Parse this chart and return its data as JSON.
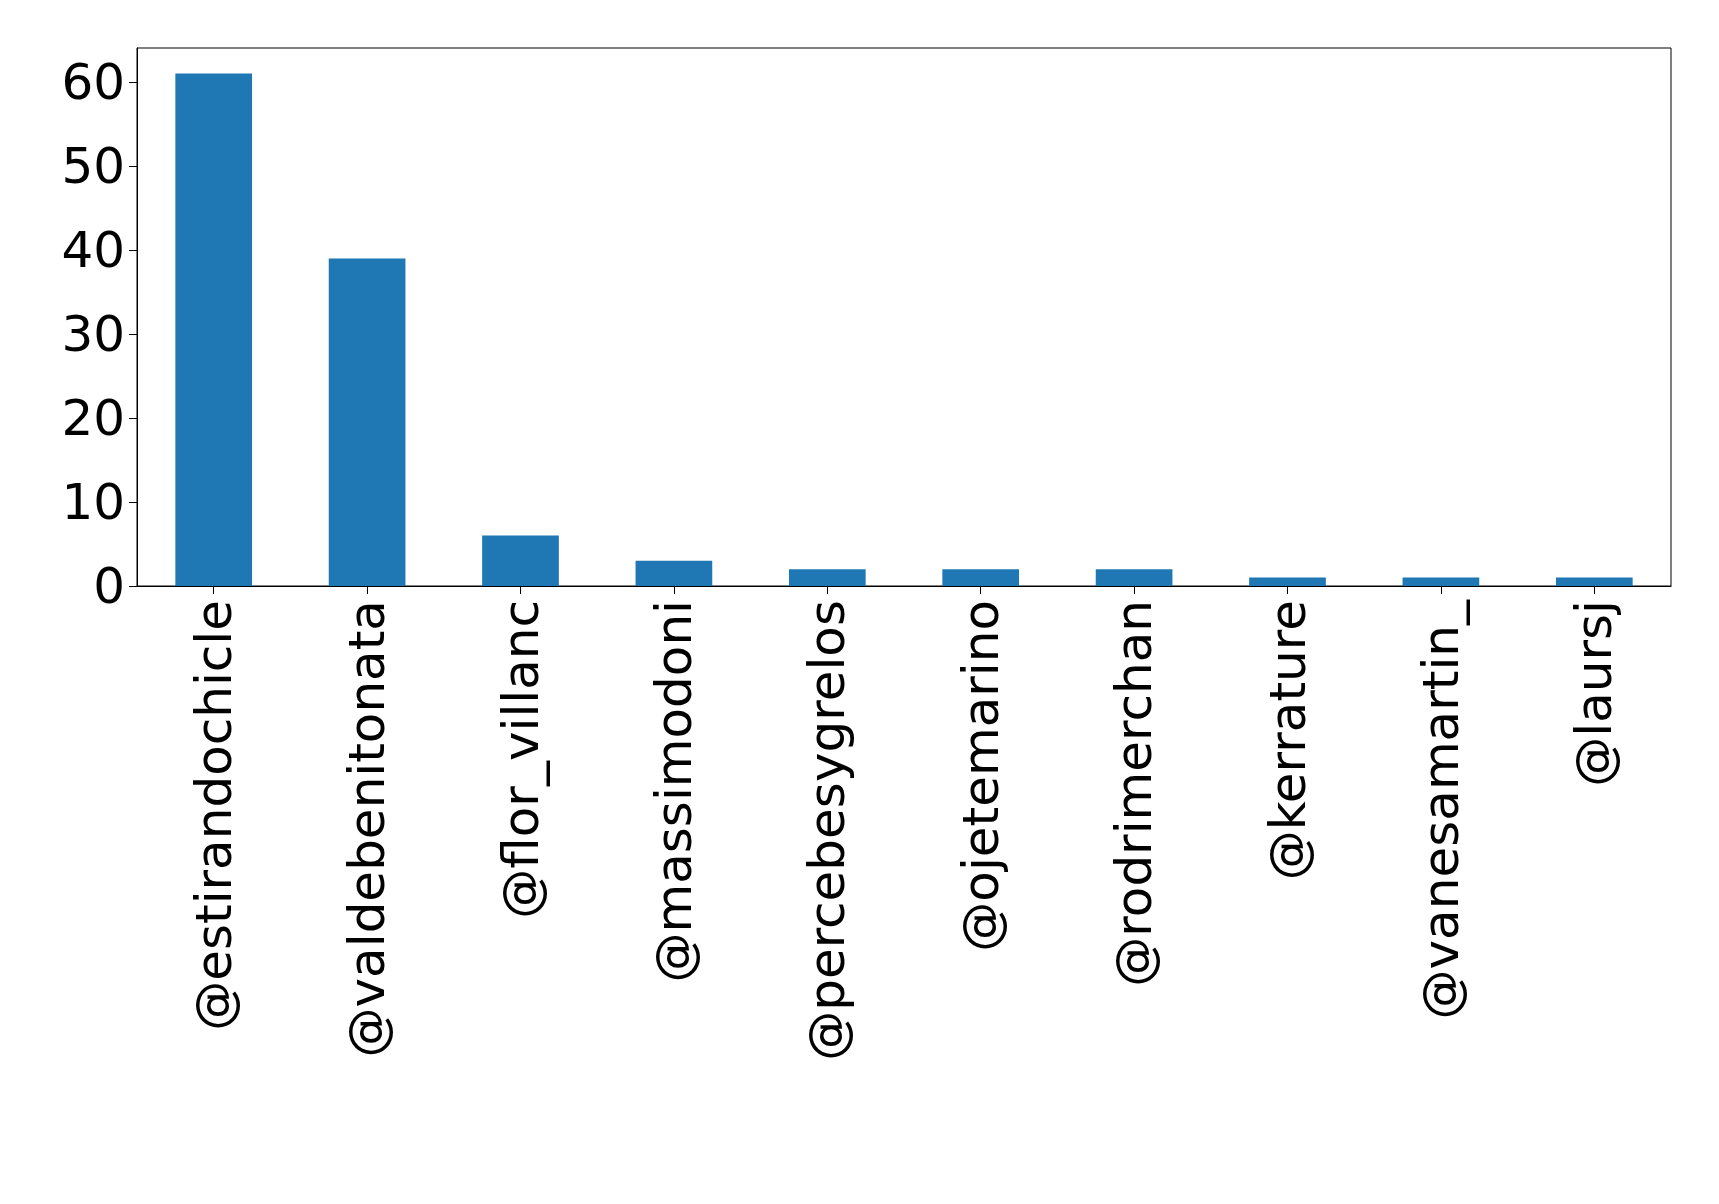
{
  "chart_data": {
    "type": "bar",
    "categories": [
      "@estirandochicle",
      "@valdebenitonata",
      "@flor_villanc",
      "@massimodoni",
      "@percebesygrelos",
      "@ojetemarino",
      "@rodrimerchan",
      "@kerrature",
      "@vanesamartin_",
      "@laursj"
    ],
    "values": [
      61,
      39,
      6,
      3,
      2,
      2,
      2,
      1,
      1,
      1
    ],
    "color": "#1f77b4",
    "ylim": [
      0,
      64.05
    ],
    "yticks": [
      0,
      10,
      20,
      30,
      40,
      50,
      60
    ],
    "grid": false
  }
}
